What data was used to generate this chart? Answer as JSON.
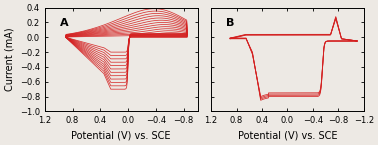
{
  "panel_A_label": "A",
  "panel_B_label": "B",
  "xlabel": "Potential (V) vs. SCE",
  "ylabel": "Current (mA)",
  "xlim_A": [
    1.2,
    -1.0
  ],
  "xlim_B": [
    1.2,
    -1.2
  ],
  "ylim": [
    -1.0,
    0.4
  ],
  "yticks": [
    -1.0,
    -0.8,
    -0.6,
    -0.4,
    -0.2,
    0.0,
    0.2,
    0.4
  ],
  "xticks_A": [
    1.2,
    0.8,
    0.4,
    0.0,
    -0.4,
    -0.8
  ],
  "xticks_B": [
    1.2,
    0.8,
    0.4,
    0.0,
    -0.4,
    -0.8,
    -1.2
  ],
  "line_color": "#d42020",
  "bg_color": "#ede9e4",
  "n_cycles_A": 12,
  "n_cycles_B": 4,
  "label_fontsize": 7,
  "tick_fontsize": 6
}
